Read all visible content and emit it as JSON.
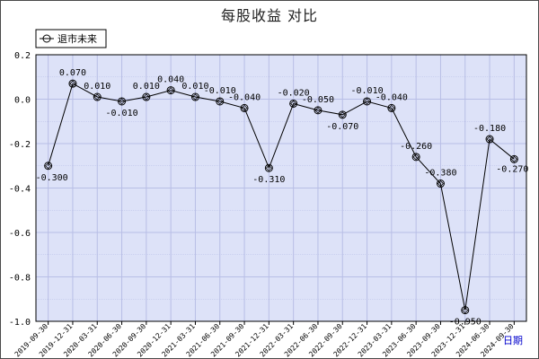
{
  "chart_data": {
    "type": "line",
    "title": "每股收益 对比",
    "xlabel": "日期",
    "ylabel": "",
    "ylim": [
      -1.0,
      0.2
    ],
    "yticks": [
      "0.2",
      "0.0",
      "-0.2",
      "-0.4",
      "-0.6",
      "-0.8",
      "-1.0"
    ],
    "grid": true,
    "legend_position": "top-left",
    "x": [
      "2019-09-30",
      "2019-12-31",
      "2020-03-31",
      "2020-06-30",
      "2020-09-30",
      "2020-12-31",
      "2021-03-31",
      "2021-06-30",
      "2021-09-30",
      "2021-12-31",
      "2022-03-31",
      "2022-06-30",
      "2022-09-30",
      "2022-12-31",
      "2023-03-31",
      "2023-06-30",
      "2023-09-30",
      "2023-12-31",
      "2024-06-30",
      "2024-09-30"
    ],
    "series": [
      {
        "name": "退市未来",
        "color": "#000000",
        "marker": "diamond-open",
        "values": [
          -0.3,
          0.07,
          0.01,
          -0.01,
          0.01,
          0.04,
          0.01,
          -0.01,
          -0.04,
          -0.31,
          -0.02,
          -0.05,
          -0.07,
          -0.01,
          -0.04,
          -0.26,
          -0.38,
          -0.95,
          -0.18,
          -0.27
        ],
        "labels": [
          "-0.300",
          "0.070",
          "0.010",
          "-0.010",
          "0.010",
          "0.040",
          "0.010",
          "-0.010",
          "-0.040",
          "-0.310",
          "-0.020",
          "-0.050",
          "-0.070",
          "-0.010",
          "-0.040",
          "-0.260",
          "-0.380",
          "-0.950",
          "-0.180",
          "-0.270"
        ]
      }
    ],
    "colors": {
      "plot_bg": "#dde2f8",
      "grid": "#b8bee6",
      "line": "#000000"
    }
  }
}
